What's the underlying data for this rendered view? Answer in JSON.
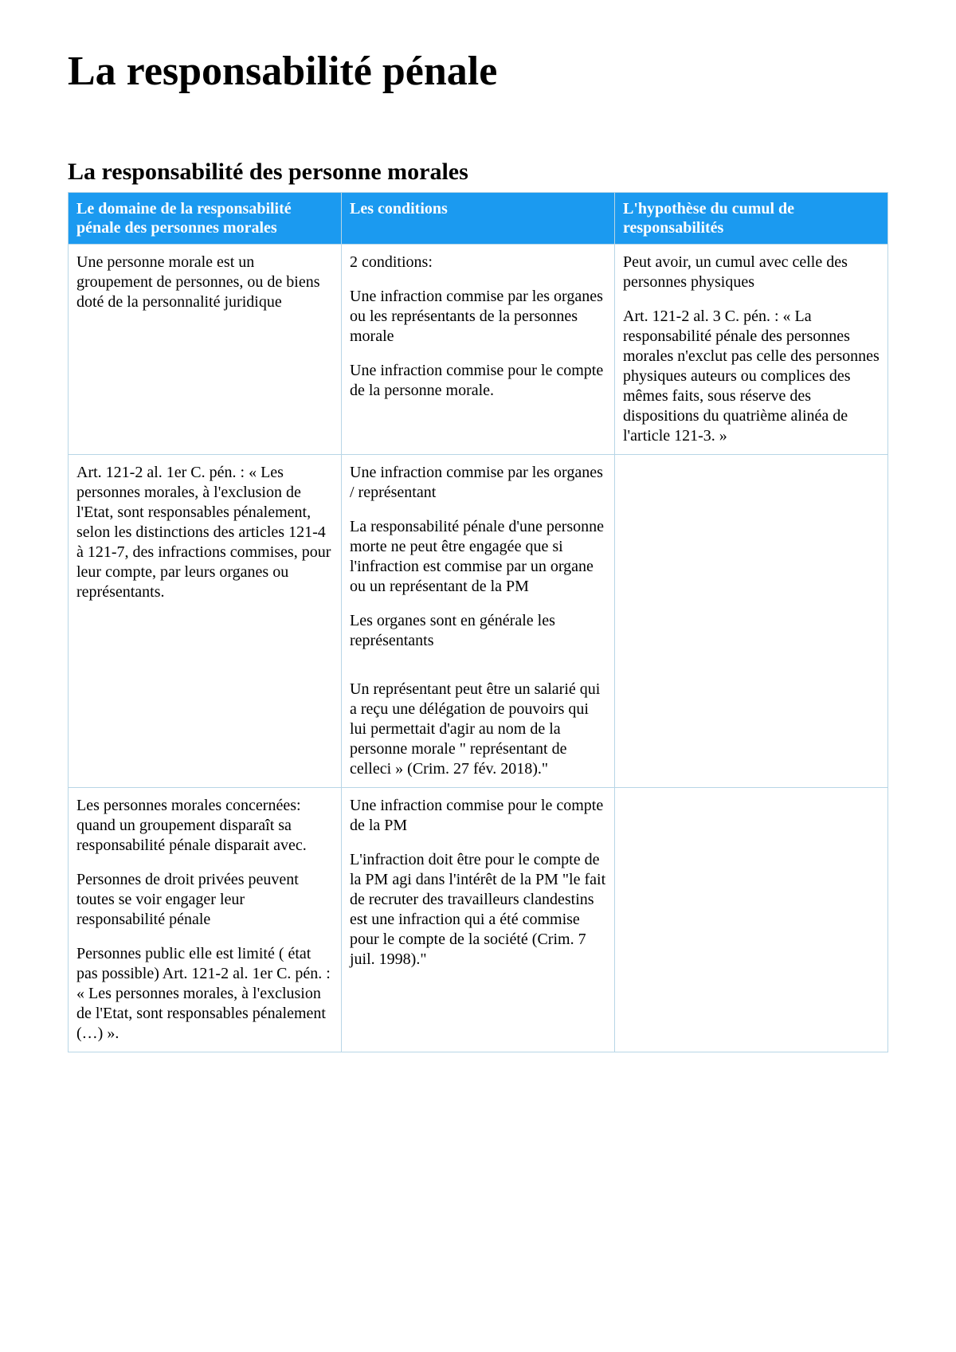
{
  "document": {
    "title": "La responsabilité pénale",
    "section_title": "La responsabilité des personne morales"
  },
  "table": {
    "header_bg": "#1b9af0",
    "header_color": "#ffffff",
    "border_color": "#b8d6e6",
    "columns": [
      "Le domaine de la responsabilité pénale des personnes morales",
      "Les conditions",
      "L'hypothèse du cumul de responsabilités"
    ],
    "rows": [
      {
        "c0": [
          "Une personne morale est un groupement de personnes, ou de biens doté de la personnalité juridique"
        ],
        "c1": [
          "2 conditions:",
          "Une infraction commise par les organes ou les représentants de la personnes morale",
          "Une infraction commise pour le compte de la personne morale."
        ],
        "c2": [
          "Peut avoir, un cumul avec celle des personnes physiques",
          "Art. 121-2 al. 3 C. pén. : « La responsabilité pénale des personnes morales n'exclut pas celle des personnes physiques auteurs ou complices des mêmes faits, sous réserve des dispositions du quatrième alinéa de l'article 121-3. »"
        ]
      },
      {
        "c0": [
          "Art. 121-2 al. 1er C. pén. : « Les personnes morales, à l'exclusion de l'Etat, sont responsables pénalement, selon les distinctions des articles 121-4 à 121-7, des infractions commises, pour leur compte, par leurs organes ou représentants."
        ],
        "c1": [
          "Une infraction commise par les organes / représentant",
          "La responsabilité pénale d'une personne morte ne peut être engagée que si l'infraction est commise par un organe ou un représentant de la PM",
          "Les organes sont en générale les représentants",
          "Un représentant peut être un salarié qui a reçu une délégation de pouvoirs qui lui permettait d'agir au nom de la personne morale \"  représentant de celleci » (Crim. 27 fév. 2018).\""
        ],
        "c2": []
      },
      {
        "c0": [
          "Les personnes morales concernées: quand un groupement disparaît sa responsabilité pénale disparait avec.",
          "Personnes de droit privées peuvent toutes se voir engager leur responsabilité pénale",
          "Personnes public elle est limité ( état pas possible) Art. 121-2 al. 1er C. pén. : « Les personnes morales, à l'exclusion de l'Etat, sont responsables pénalement (…) »."
        ],
        "c1": [
          "Une infraction commise pour le compte de la PM",
          "L'infraction doit être pour le compte de la PM agi dans l'intérêt de la PM  \"le fait de recruter des travailleurs clandestins est une infraction qui a été commise pour le compte de la société (Crim. 7 juil. 1998).\""
        ],
        "c2": []
      }
    ]
  }
}
